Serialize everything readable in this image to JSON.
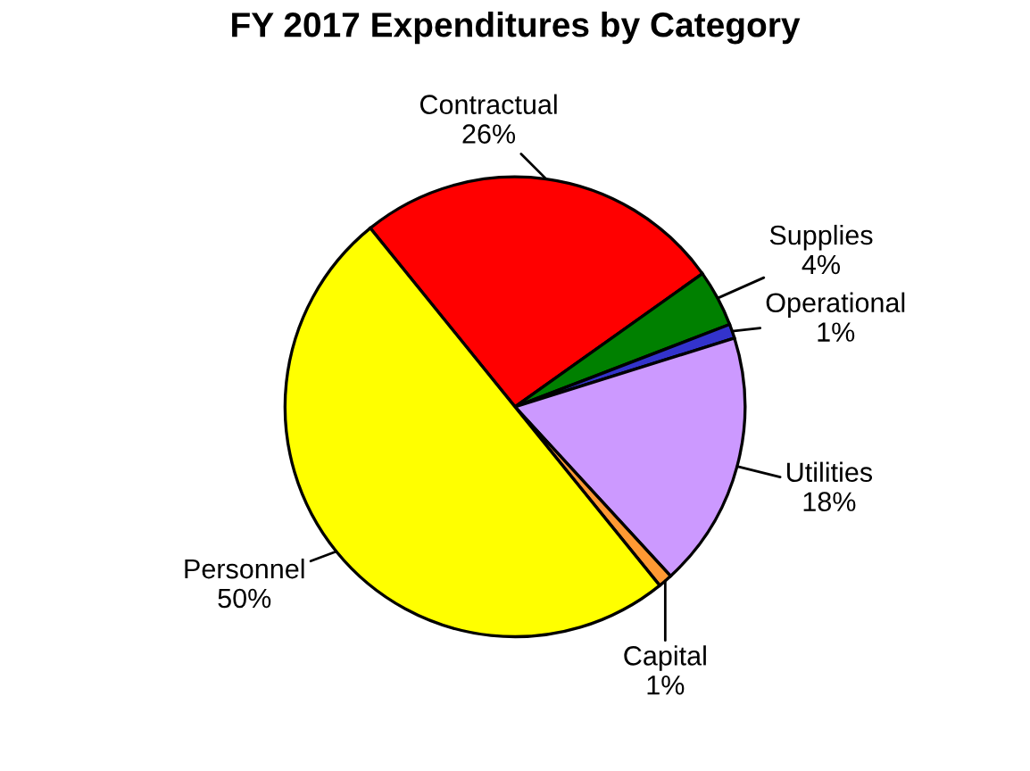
{
  "chart_data": {
    "type": "pie",
    "title": "FY 2017 Expenditures by Category",
    "categories": [
      "Contractual",
      "Supplies",
      "Operational",
      "Utilities",
      "Capital",
      "Personnel"
    ],
    "values": [
      26,
      4,
      1,
      18,
      1,
      50
    ],
    "colors": [
      "#ff0000",
      "#008000",
      "#3333cc",
      "#cc99ff",
      "#ff9933",
      "#ffff00"
    ],
    "value_labels": [
      "26%",
      "4%",
      "1%",
      "18%",
      "1%",
      "50%"
    ]
  }
}
